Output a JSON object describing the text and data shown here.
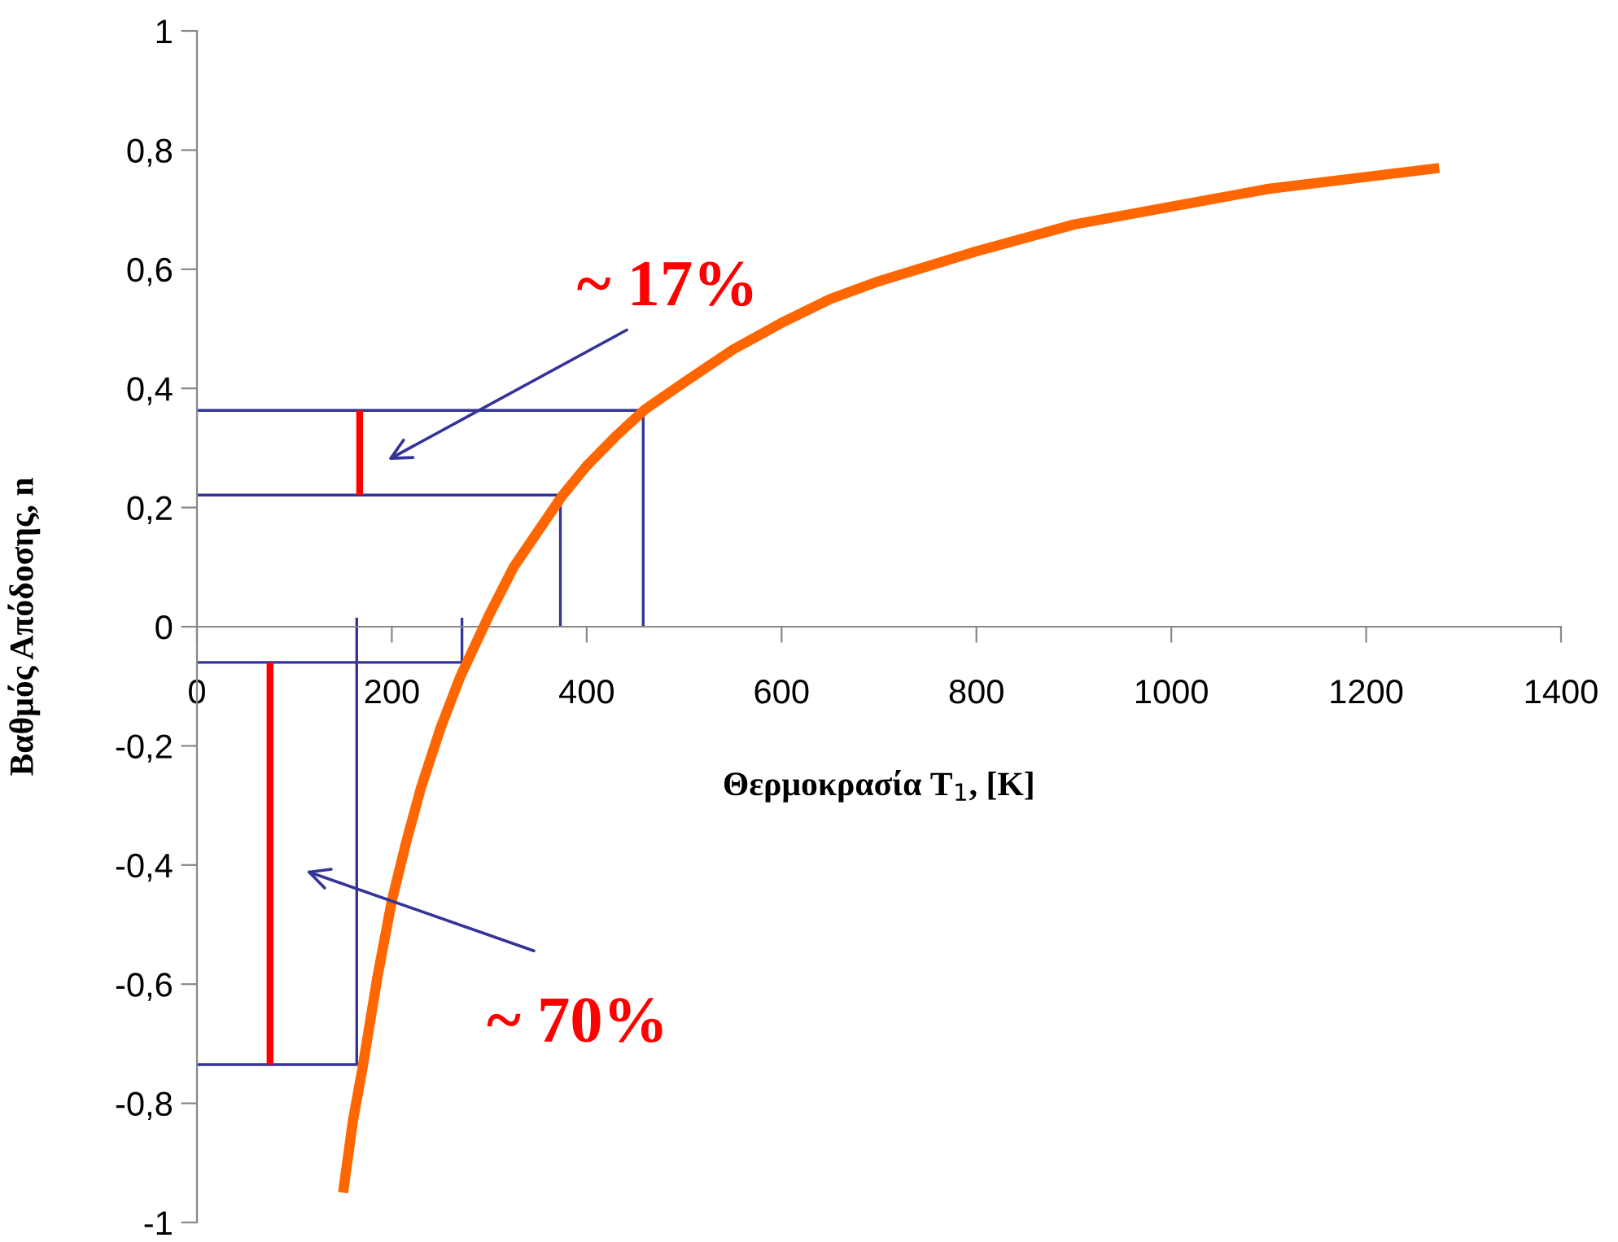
{
  "chart_data": {
    "type": "line",
    "xlabel": "Θερμοκρασία T$_{1}$, [K]",
    "ylabel": "Βαθμός Απόδοσης, n",
    "xlim": [
      0,
      1400
    ],
    "xticks": [
      0,
      200,
      400,
      600,
      800,
      1000,
      1200,
      1400
    ],
    "ylim": [
      -1,
      1
    ],
    "yticks": [
      {
        "value": -1,
        "label": "-1"
      },
      {
        "value": -0.8,
        "label": "-0,8"
      },
      {
        "value": -0.6,
        "label": "-0,6"
      },
      {
        "value": -0.4,
        "label": "-0,4"
      },
      {
        "value": -0.2,
        "label": "-0,2"
      },
      {
        "value": 0,
        "label": "0"
      },
      {
        "value": 0.2,
        "label": "0,2"
      },
      {
        "value": 0.4,
        "label": "0,4"
      },
      {
        "value": 0.6,
        "label": "0,6"
      },
      {
        "value": 0.8,
        "label": "0,8"
      },
      {
        "value": 1,
        "label": "1"
      }
    ],
    "grid": false,
    "legend": false,
    "marker": "none",
    "line_style": "solid",
    "series": [
      {
        "color": "#ff6600",
        "x": [
          150,
          160,
          170,
          185,
          200,
          215,
          230,
          250,
          270,
          300,
          325,
          350,
          375,
          400,
          430,
          460,
          500,
          550,
          600,
          650,
          700,
          800,
          900,
          1000,
          1100,
          1200,
          1275
        ],
        "values": [
          -0.95,
          -0.83,
          -0.74,
          -0.59,
          -0.46,
          -0.36,
          -0.27,
          -0.17,
          -0.085,
          0.02,
          0.1,
          0.16,
          0.22,
          0.27,
          0.32,
          0.365,
          0.41,
          0.465,
          0.51,
          0.55,
          0.58,
          0.63,
          0.675,
          0.705,
          0.735,
          0.755,
          0.77
        ]
      },
      {
        "color": "#333399",
        "x": [
          0,
          458,
          458
        ],
        "values": [
          0.363,
          0.363,
          0
        ]
      },
      {
        "color": "#333399",
        "x": [
          0,
          373,
          373
        ],
        "values": [
          0.221,
          0.221,
          0
        ]
      },
      {
        "color": "#333399",
        "x": [
          0,
          272,
          272
        ],
        "values": [
          -0.06,
          -0.06,
          0.015
        ]
      },
      {
        "color": "#333399",
        "x": [
          0,
          164,
          164
        ],
        "values": [
          -0.735,
          -0.735,
          0.015
        ]
      },
      {
        "color": "#ff0000",
        "x": [
          167,
          167
        ],
        "values": [
          0.221,
          0.363
        ]
      },
      {
        "color": "#ff0000",
        "x": [
          75,
          75
        ],
        "values": [
          -0.06,
          -0.735
        ]
      }
    ],
    "annotations": [
      "~ 17%",
      "~ 70%"
    ]
  }
}
